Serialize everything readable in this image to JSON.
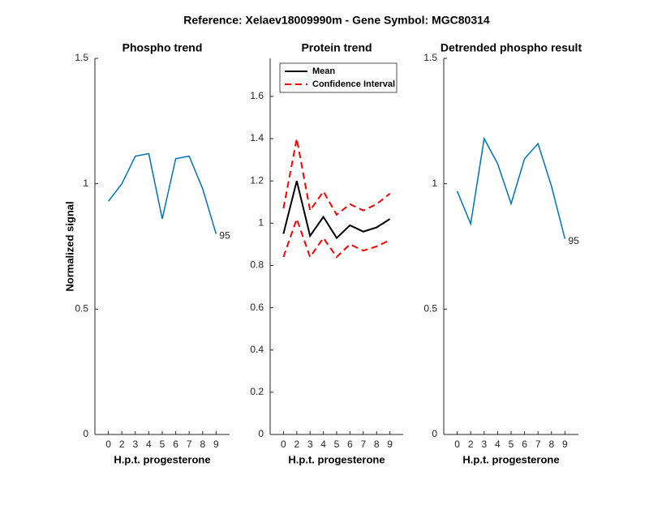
{
  "title": "Reference:  Xelaev18009990m - Gene Symbol:  MGC80314",
  "chart_data": [
    {
      "type": "line",
      "title": "Phospho trend",
      "xlabel": "H.p.t. progesterone",
      "ylabel": "Normalized signal",
      "categories": [
        "0",
        "2",
        "3",
        "4",
        "5",
        "6",
        "7",
        "8",
        "9"
      ],
      "series": [
        {
          "color": "#0072bd",
          "values": [
            0.93,
            1.0,
            1.11,
            1.12,
            0.86,
            1.1,
            1.11,
            0.98,
            0.8
          ]
        }
      ],
      "annotation": "95",
      "ylim": [
        0,
        1.5
      ],
      "yticks": [
        0,
        0.5,
        1,
        1.5
      ]
    },
    {
      "type": "band-line",
      "title": "Protein trend",
      "xlabel": "H.p.t. progesterone",
      "categories": [
        "0",
        "2",
        "3",
        "4",
        "5",
        "6",
        "7",
        "8",
        "9"
      ],
      "series": [
        {
          "name": "Mean",
          "color": "#000000",
          "values": [
            0.95,
            1.2,
            0.94,
            1.03,
            0.93,
            0.99,
            0.96,
            0.98,
            1.02
          ]
        },
        {
          "name": "Confidence Interval",
          "color": "#ff0000",
          "dashed": true,
          "values": [
            1.07,
            1.4,
            1.06,
            1.15,
            1.04,
            1.09,
            1.06,
            1.09,
            1.14
          ],
          "lower": [
            0.84,
            1.02,
            0.84,
            0.93,
            0.84,
            0.9,
            0.87,
            0.89,
            0.92
          ]
        }
      ],
      "legend": "upper left",
      "ylim": [
        0,
        1.78
      ],
      "yticks": [
        0,
        0.2,
        0.4,
        0.6,
        0.8,
        1,
        1.2,
        1.4,
        1.6
      ]
    },
    {
      "type": "line",
      "title": "Detrended phospho result",
      "xlabel": "H.p.t. progesterone",
      "categories": [
        "0",
        "2",
        "3",
        "4",
        "5",
        "6",
        "7",
        "8",
        "9"
      ],
      "series": [
        {
          "color": "#0072bd",
          "values": [
            0.97,
            0.84,
            1.18,
            1.08,
            0.92,
            1.1,
            1.16,
            0.99,
            0.78
          ]
        }
      ],
      "annotation": "95",
      "ylim": [
        0,
        1.5
      ],
      "yticks": [
        0,
        0.5,
        1,
        1.5
      ]
    }
  ]
}
